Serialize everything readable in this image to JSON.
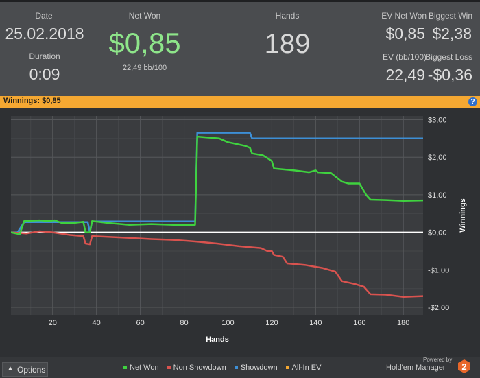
{
  "stats": {
    "date_label": "Date",
    "date_value": "25.02.2018",
    "duration_label": "Duration",
    "duration_value": "0:09",
    "net_won_label": "Net Won",
    "net_won_value": "$0,85",
    "bb_per_100": "22,49 bb/100",
    "hands_label": "Hands",
    "hands_value": "189",
    "ev_net_won_label": "EV Net Won",
    "ev_net_won_value": "$0,85",
    "biggest_win_label": "Biggest Win",
    "biggest_win_value": "$2,38",
    "ev_bb_label": "EV (bb/100)",
    "ev_bb_value": "22,49",
    "biggest_loss_label": "Biggest Loss",
    "biggest_loss_value": "-$0,36"
  },
  "banner": {
    "text": "Winnings: $0,85",
    "help_icon": "?"
  },
  "chart_data": {
    "type": "line",
    "title": "",
    "xlabel": "Hands",
    "ylabel": "Winnings",
    "xlim": [
      1,
      189
    ],
    "ylim": [
      -2.2,
      3.1
    ],
    "x_ticks": [
      20,
      40,
      60,
      80,
      100,
      120,
      140,
      160,
      180
    ],
    "y_ticks": [
      {
        "value": 3,
        "label": "$3,00"
      },
      {
        "value": 2,
        "label": "$2,00"
      },
      {
        "value": 1,
        "label": "$1,00"
      },
      {
        "value": 0,
        "label": "$0,00"
      },
      {
        "value": -1,
        "label": "-$1,00"
      },
      {
        "value": -2,
        "label": "-$2,00"
      }
    ],
    "grid": true,
    "colors": {
      "net_won": "#3fd23f",
      "non_showdown": "#d9534f",
      "showdown": "#3d8fd6",
      "all_in_ev": "#f5a832",
      "zero_line": "#ffffff"
    },
    "series": [
      {
        "name": "Showdown",
        "points": [
          [
            1,
            0
          ],
          [
            4,
            0
          ],
          [
            7,
            0.27
          ],
          [
            36,
            0.27
          ],
          [
            37,
            0
          ],
          [
            38,
            0.29
          ],
          [
            85,
            0.29
          ],
          [
            86,
            2.65
          ],
          [
            110,
            2.65
          ],
          [
            111,
            2.5
          ],
          [
            189,
            2.5
          ]
        ]
      },
      {
        "name": "Non Showdown",
        "points": [
          [
            1,
            0
          ],
          [
            8,
            -0.03
          ],
          [
            14,
            0.03
          ],
          [
            20,
            0.0
          ],
          [
            28,
            -0.07
          ],
          [
            34,
            -0.1
          ],
          [
            35,
            -0.3
          ],
          [
            37,
            -0.32
          ],
          [
            38,
            -0.1
          ],
          [
            55,
            -0.15
          ],
          [
            65,
            -0.18
          ],
          [
            75,
            -0.2
          ],
          [
            82,
            -0.23
          ],
          [
            86,
            -0.25
          ],
          [
            95,
            -0.3
          ],
          [
            105,
            -0.37
          ],
          [
            115,
            -0.42
          ],
          [
            118,
            -0.5
          ],
          [
            120,
            -0.5
          ],
          [
            121,
            -0.6
          ],
          [
            125,
            -0.65
          ],
          [
            127,
            -0.83
          ],
          [
            135,
            -0.87
          ],
          [
            143,
            -0.95
          ],
          [
            149,
            -1.05
          ],
          [
            152,
            -1.3
          ],
          [
            158,
            -1.38
          ],
          [
            162,
            -1.45
          ],
          [
            165,
            -1.65
          ],
          [
            172,
            -1.66
          ],
          [
            180,
            -1.72
          ],
          [
            189,
            -1.7
          ]
        ]
      },
      {
        "name": "Net Won",
        "points": [
          [
            1,
            0
          ],
          [
            5,
            -0.05
          ],
          [
            7,
            0.3
          ],
          [
            14,
            0.32
          ],
          [
            18,
            0.3
          ],
          [
            21,
            0.32
          ],
          [
            24,
            0.25
          ],
          [
            30,
            0.25
          ],
          [
            34,
            0.28
          ],
          [
            35,
            0.0
          ],
          [
            37,
            0.0
          ],
          [
            38,
            0.3
          ],
          [
            45,
            0.25
          ],
          [
            55,
            0.2
          ],
          [
            65,
            0.22
          ],
          [
            75,
            0.2
          ],
          [
            85,
            0.2
          ],
          [
            86,
            2.55
          ],
          [
            96,
            2.5
          ],
          [
            100,
            2.4
          ],
          [
            104,
            2.35
          ],
          [
            108,
            2.3
          ],
          [
            110,
            2.25
          ],
          [
            111,
            2.1
          ],
          [
            116,
            2.05
          ],
          [
            120,
            1.9
          ],
          [
            121,
            1.7
          ],
          [
            130,
            1.65
          ],
          [
            137,
            1.6
          ],
          [
            140,
            1.65
          ],
          [
            141,
            1.6
          ],
          [
            147,
            1.58
          ],
          [
            152,
            1.35
          ],
          [
            155,
            1.3
          ],
          [
            160,
            1.3
          ],
          [
            163,
            1.0
          ],
          [
            165,
            0.87
          ],
          [
            172,
            0.86
          ],
          [
            180,
            0.84
          ],
          [
            189,
            0.85
          ]
        ]
      },
      {
        "name": "All-In EV",
        "points": []
      }
    ]
  },
  "bottom": {
    "options_label": "Options",
    "options_caret": "▲",
    "legend": [
      {
        "label": "Net Won",
        "color": "#3fd23f"
      },
      {
        "label": "Non Showdown",
        "color": "#d9534f"
      },
      {
        "label": "Showdown",
        "color": "#3d8fd6"
      },
      {
        "label": "All-In EV",
        "color": "#f5a832"
      }
    ],
    "powered_by": "Powered by",
    "brand": "Hold'em Manager",
    "brand_logo_text": "2"
  }
}
